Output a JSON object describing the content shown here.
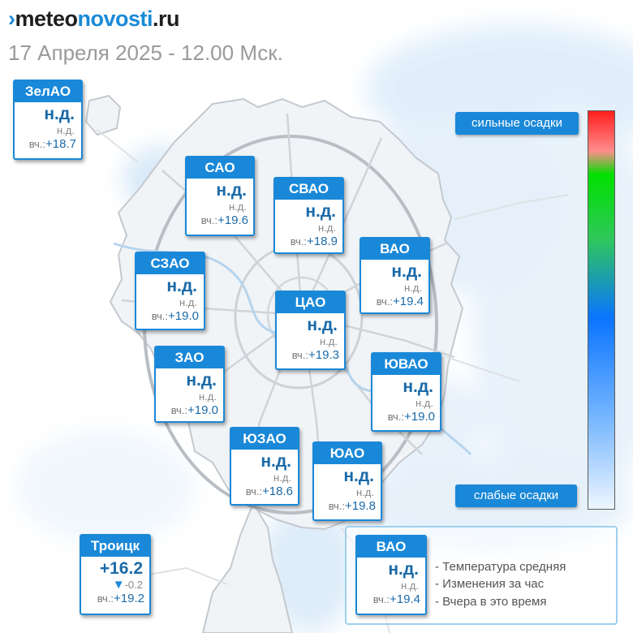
{
  "header": {
    "logo_mark": "›",
    "logo_part1": "meteo",
    "logo_part2": "novosti",
    "logo_part3": ".ru",
    "date": "17 Апреля 2025 - 12.00 Мск."
  },
  "colors": {
    "accent": "#1a88d8",
    "value_text": "#1a6aa8",
    "scale_strong": "#ff1e1e",
    "scale_weak": "#eef6ff"
  },
  "scale": {
    "strong_label": "сильные осадки",
    "weak_label": "слабые осадки"
  },
  "yest_label": "вч.:",
  "districts": [
    {
      "id": "zelao",
      "name": "ЗелАО",
      "temp": "н.д.",
      "change": "н.д.",
      "yesterday": "+18.7"
    },
    {
      "id": "sao",
      "name": "САО",
      "temp": "н.д.",
      "change": "н.д.",
      "yesterday": "+19.6"
    },
    {
      "id": "svao",
      "name": "СВАО",
      "temp": "н.д.",
      "change": "н.д.",
      "yesterday": "+18.9"
    },
    {
      "id": "vao",
      "name": "ВАО",
      "temp": "н.д.",
      "change": "н.д.",
      "yesterday": "+19.4"
    },
    {
      "id": "szao",
      "name": "СЗАО",
      "temp": "н.д.",
      "change": "н.д.",
      "yesterday": "+19.0"
    },
    {
      "id": "cao",
      "name": "ЦАО",
      "temp": "н.д.",
      "change": "н.д.",
      "yesterday": "+19.3"
    },
    {
      "id": "zao",
      "name": "ЗАО",
      "temp": "н.д.",
      "change": "н.д.",
      "yesterday": "+19.0"
    },
    {
      "id": "yuvao",
      "name": "ЮВАО",
      "temp": "н.д.",
      "change": "н.д.",
      "yesterday": "+19.0"
    },
    {
      "id": "yuzao",
      "name": "ЮЗАО",
      "temp": "н.д.",
      "change": "н.д.",
      "yesterday": "+18.6"
    },
    {
      "id": "yuao",
      "name": "ЮАО",
      "temp": "н.д.",
      "change": "н.д.",
      "yesterday": "+19.8"
    },
    {
      "id": "troitsk",
      "name": "Троицк",
      "temp": "+16.2",
      "change_arrow": "▼",
      "change": "-0.2",
      "yesterday": "+19.2"
    }
  ],
  "legend": {
    "sample": {
      "name": "ВАО",
      "temp": "н.д.",
      "change": "н.д.",
      "yesterday": "+19.4"
    },
    "items": [
      "- Температура средняя",
      "- Изменения за час",
      "- Вчера в это время"
    ]
  }
}
